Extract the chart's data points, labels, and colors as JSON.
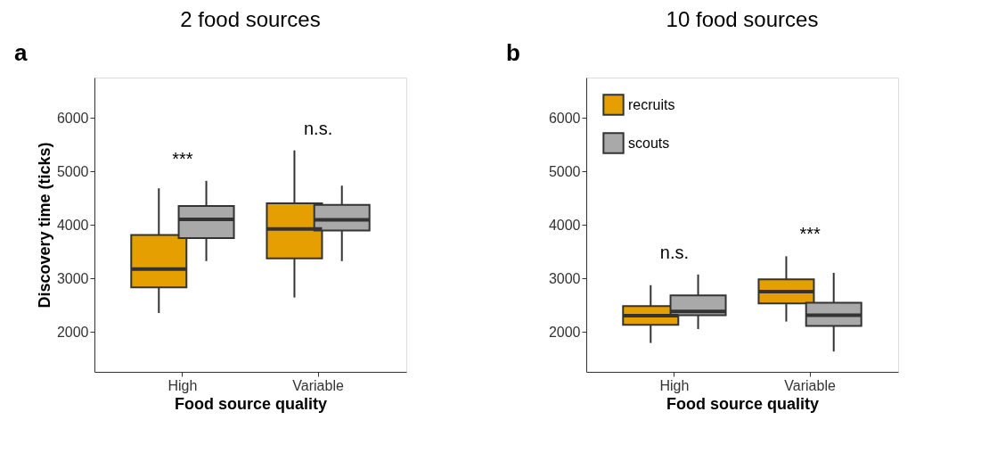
{
  "chart_data": [
    {
      "type": "box",
      "title": "2 food sources",
      "xlabel": "Food source quality",
      "ylabel": "Discovery time (ticks)",
      "categories": [
        "High",
        "Variable"
      ],
      "ylim": [
        1250,
        6750
      ],
      "yticks": [
        2000,
        3000,
        4000,
        5000,
        6000
      ],
      "grid": false,
      "legend": false,
      "series": [
        {
          "color": "#e69f00",
          "boxes": [
            {
              "low": 2350,
              "q1": 2830,
              "median": 3170,
              "q3": 3810,
              "high": 4680
            },
            {
              "low": 2640,
              "q1": 3370,
              "median": 3920,
              "q3": 4400,
              "high": 5390
            }
          ]
        },
        {
          "color": "#a9a9a9",
          "boxes": [
            {
              "low": 3320,
              "q1": 3750,
              "median": 4100,
              "q3": 4350,
              "high": 4820
            },
            {
              "low": 3320,
              "q1": 3890,
              "median": 4090,
              "q3": 4370,
              "high": 4730
            }
          ]
        }
      ],
      "annotations": [
        "a",
        "***",
        "n.s."
      ]
    },
    {
      "type": "box",
      "title": "10 food sources",
      "xlabel": "Food source quality",
      "categories": [
        "High",
        "Variable"
      ],
      "ylim": [
        1250,
        6750
      ],
      "yticks": [
        2000,
        3000,
        4000,
        5000,
        6000
      ],
      "grid": false,
      "legend": "top left",
      "series": [
        {
          "name": "recruits",
          "color": "#e69f00",
          "boxes": [
            {
              "low": 1790,
              "q1": 2130,
              "median": 2300,
              "q3": 2480,
              "high": 2870
            },
            {
              "low": 2190,
              "q1": 2530,
              "median": 2750,
              "q3": 2980,
              "high": 3410
            }
          ]
        },
        {
          "name": "scouts",
          "color": "#a9a9a9",
          "boxes": [
            {
              "low": 2050,
              "q1": 2310,
              "median": 2380,
              "q3": 2680,
              "high": 3070
            },
            {
              "low": 1630,
              "q1": 2110,
              "median": 2310,
              "q3": 2540,
              "high": 3100
            }
          ]
        }
      ],
      "annotations": [
        "b",
        "n.s.",
        "***"
      ]
    }
  ]
}
